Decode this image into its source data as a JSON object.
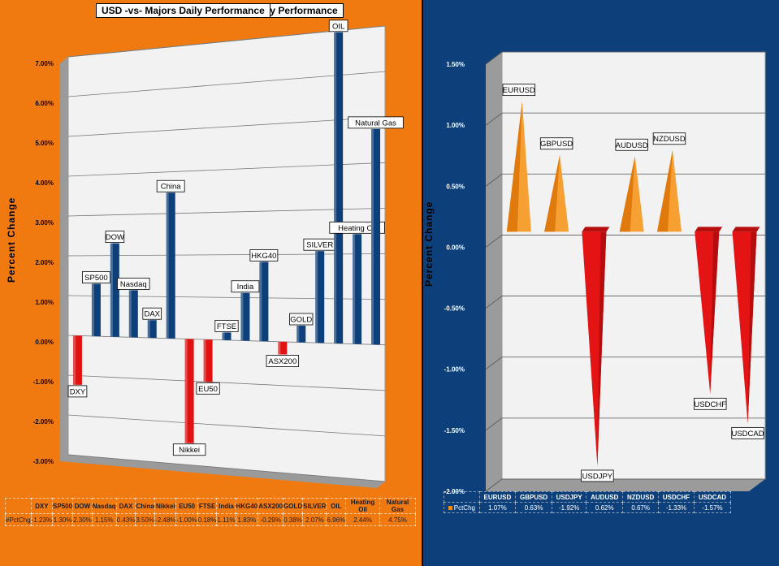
{
  "left": {
    "title": "DXY, Commodity & Equity Daily Performance",
    "ylabel": "Percent Change",
    "series_label": "#PctChg"
  },
  "right": {
    "title": "USD -vs- Majors Daily Performance",
    "ylabel": "Percent Change",
    "series_label": "PctChg"
  },
  "colors": {
    "left_bg": "#f07a10",
    "right_bg": "#0d3f7a",
    "positive_left": "#0d3f7a",
    "negative": "#e21212",
    "positive_right": "#f08a18"
  },
  "chart_data": [
    {
      "type": "bar",
      "title": "DXY, Commodity & Equity Daily Performance",
      "ylabel": "Percent Change",
      "ylim": [
        -3.0,
        7.0
      ],
      "yticks": [
        "-3.00%",
        "-2.00%",
        "-1.00%",
        "0.00%",
        "1.00%",
        "2.00%",
        "3.00%",
        "4.00%",
        "5.00%",
        "6.00%",
        "7.00%"
      ],
      "categories": [
        "DXY",
        "SP500",
        "DOW",
        "Nasdaq",
        "DAX",
        "China",
        "Nikkei",
        "EU50",
        "FTSE",
        "India",
        "HKG40",
        "ASX200",
        "GOLD",
        "SILVER",
        "OIL",
        "Heating Oil",
        "Natural Gas"
      ],
      "values": [
        -1.23,
        1.3,
        2.3,
        1.15,
        0.43,
        3.5,
        -2.48,
        -1.0,
        0.18,
        1.11,
        1.83,
        -0.29,
        0.38,
        2.07,
        6.96,
        2.44,
        4.75
      ],
      "value_labels": [
        "-1.23%",
        "1.30%",
        "2.30%",
        "1.15%",
        "0.43%",
        "3.50%",
        "-2.48%",
        "-1.00%",
        "0.18%",
        "1.11%",
        "1.83%",
        "-0.29%",
        "0.38%",
        "2.07%",
        "6.96%",
        "2.44%",
        "4.75%"
      ],
      "series": [
        {
          "name": "#PctChg"
        }
      ],
      "grid": true
    },
    {
      "type": "bar",
      "title": "USD -vs- Majors Daily Performance",
      "ylabel": "Percent Change",
      "ylim": [
        -2.0,
        1.5
      ],
      "yticks": [
        "-2.00%",
        "-1.50%",
        "-1.00%",
        "-0.50%",
        "0.00%",
        "0.50%",
        "1.00%",
        "1.50%"
      ],
      "categories": [
        "EURUSD",
        "GBPUSD",
        "USDJPY",
        "AUDUSD",
        "NZDUSD",
        "USDCHF",
        "USDCAD"
      ],
      "values": [
        1.07,
        0.63,
        -1.92,
        0.62,
        0.67,
        -1.33,
        -1.57
      ],
      "value_labels": [
        "1.07%",
        "0.63%",
        "-1.92%",
        "0.62%",
        "0.67%",
        "-1.33%",
        "-1.57%"
      ],
      "series": [
        {
          "name": "PctChg"
        }
      ],
      "grid": true
    }
  ]
}
